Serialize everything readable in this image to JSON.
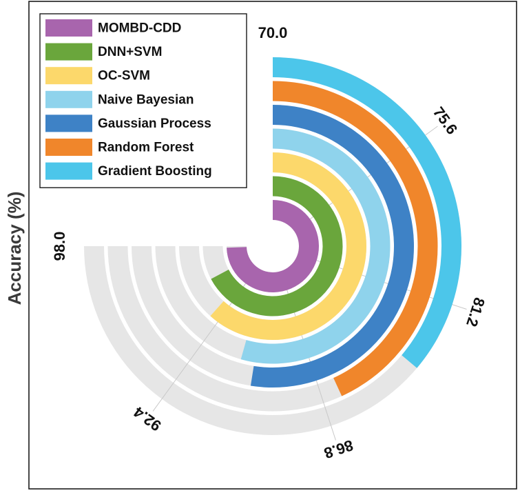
{
  "chart_data": {
    "type": "radial-bar",
    "ylabel": "Accuracy (%)",
    "range": [
      70.0,
      98.0
    ],
    "ticks": [
      70.0,
      75.6,
      81.2,
      86.8,
      92.4,
      98.0
    ],
    "tick_labels": [
      "70.0",
      "75.6",
      "81.2",
      "86.8",
      "92.4",
      "98.0"
    ],
    "legend_position": "top-left",
    "series": [
      {
        "name": "MOMBD-CDD",
        "value": 97.8,
        "color": "#a865ad"
      },
      {
        "name": "DNN+SVM",
        "value": 95.1,
        "color": "#6aa63c"
      },
      {
        "name": "OC-SVM",
        "value": 93.0,
        "color": "#fcd86b"
      },
      {
        "name": "Naive Bayesian",
        "value": 90.3,
        "color": "#8fd3ec"
      },
      {
        "name": "Gaussian Process",
        "value": 89.6,
        "color": "#3e82c6"
      },
      {
        "name": "Random Forest",
        "value": 86.1,
        "color": "#f0862b"
      },
      {
        "name": "Gradient Boosting",
        "value": 83.5,
        "color": "#4cc6ea"
      }
    ]
  }
}
